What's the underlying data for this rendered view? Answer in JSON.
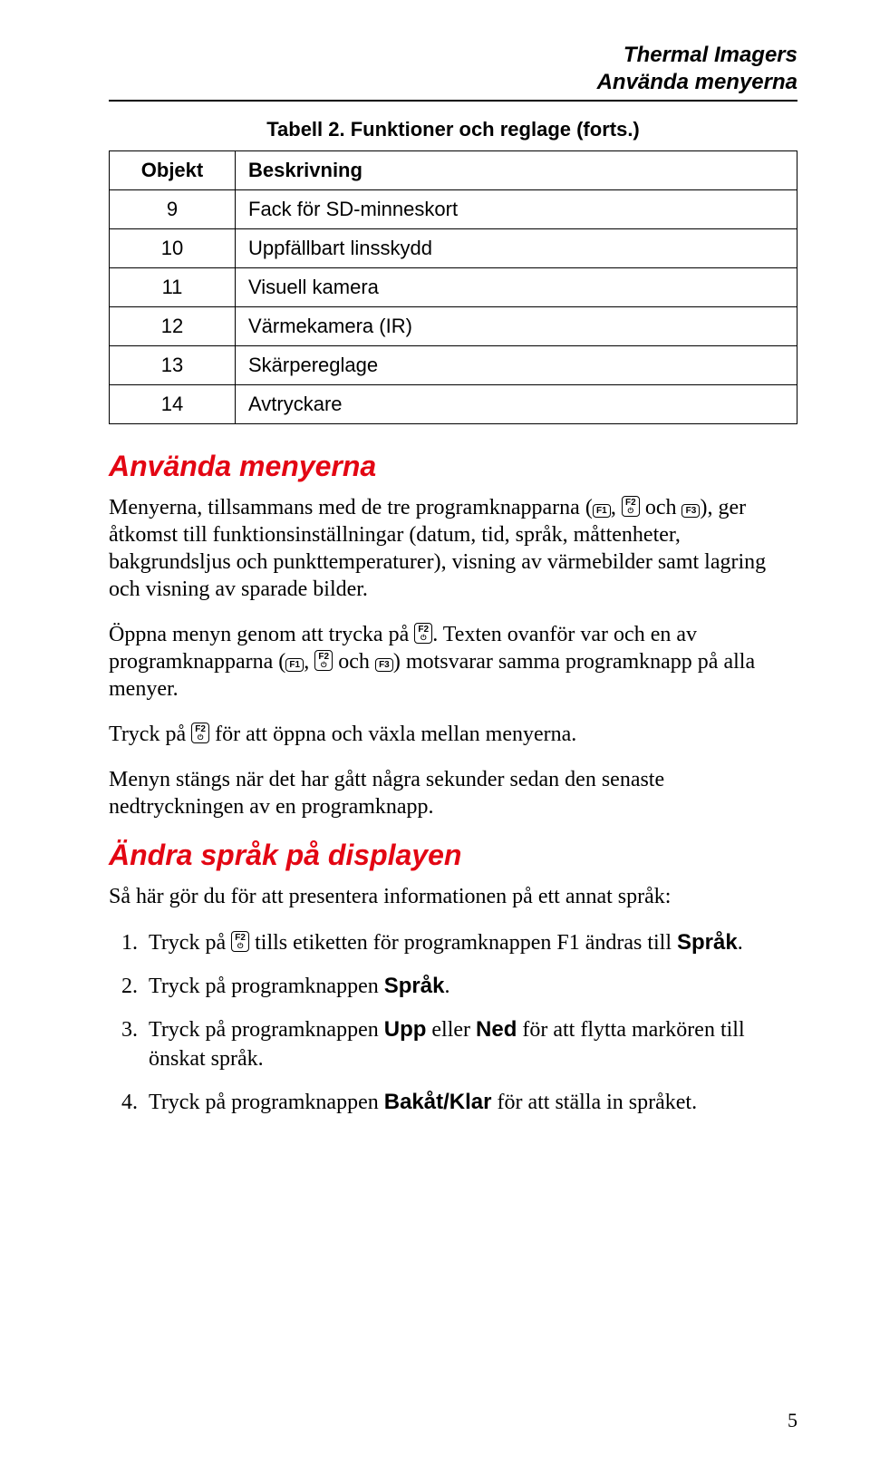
{
  "header": {
    "line1": "Thermal Imagers",
    "line2": "Använda menyerna"
  },
  "table": {
    "caption": "Tabell 2. Funktioner och reglage (forts.)",
    "col_obj": "Objekt",
    "col_desc": "Beskrivning",
    "rows": [
      {
        "n": "9",
        "d": "Fack för SD-minneskort"
      },
      {
        "n": "10",
        "d": "Uppfällbart linsskydd"
      },
      {
        "n": "11",
        "d": "Visuell kamera"
      },
      {
        "n": "12",
        "d": "Värmekamera (IR)"
      },
      {
        "n": "13",
        "d": "Skärpereglage"
      },
      {
        "n": "14",
        "d": "Avtryckare"
      }
    ]
  },
  "keys": {
    "f1": "F1",
    "f2": "F2",
    "f3": "F3",
    "pwr": "⏻"
  },
  "section1": {
    "title": "Använda menyerna",
    "p1a": "Menyerna, tillsammans med de tre programknapparna (",
    "p1b": ", ",
    "p1c": " och ",
    "p1d": "), ger åtkomst till funktionsinställningar (datum, tid, språk, måttenheter, bakgrundsljus och punkttemperaturer), visning av värmebilder samt lagring och visning av sparade bilder.",
    "p2a": "Öppna menyn genom att trycka på ",
    "p2b": ". Texten ovanför var och en av programknapparna (",
    "p2c": ", ",
    "p2d": " och ",
    "p2e": ") motsvarar samma programknapp på alla menyer.",
    "p3a": "Tryck på ",
    "p3b": " för att öppna och växla mellan menyerna.",
    "p4": "Menyn stängs när det har gått några sekunder sedan den senaste nedtryckningen av en programknapp."
  },
  "section2": {
    "title": "Ändra språk på displayen",
    "intro": "Så här gör du för att presentera informationen på ett annat språk:",
    "s1a": "Tryck på ",
    "s1b": " tills etiketten för programknappen F1 ändras till ",
    "s1c": "Språk",
    "s1d": ".",
    "s2a": "Tryck på programknappen ",
    "s2b": "Språk",
    "s2c": ".",
    "s3a": "Tryck på programknappen ",
    "s3b": "Upp",
    "s3c": " eller ",
    "s3d": "Ned",
    "s3e": " för att flytta markören till önskat språk.",
    "s4a": "Tryck på programknappen ",
    "s4b": "Bakåt/Klar",
    "s4c": " för att ställa in språket."
  },
  "page_number": "5"
}
